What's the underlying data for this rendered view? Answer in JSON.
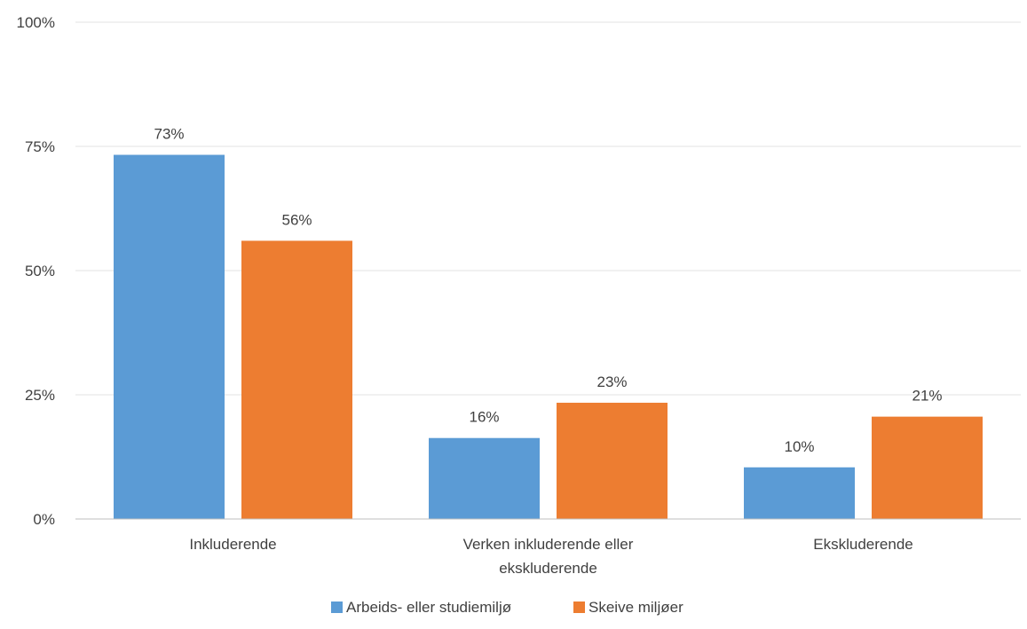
{
  "chart_data": {
    "type": "bar",
    "categories": [
      [
        "Inkluderende"
      ],
      [
        "Verken inkluderende eller",
        "ekskluderende"
      ],
      [
        "Ekskluderende"
      ]
    ],
    "series": [
      {
        "name": "Arbeids- eller studiemiljø",
        "color": "#5B9BD5",
        "values": [
          73.3,
          16.3,
          10.4
        ],
        "labels": [
          "73%",
          "16%",
          "10%"
        ]
      },
      {
        "name": "Skeive miljøer",
        "color": "#ED7D31",
        "values": [
          56.0,
          23.4,
          20.6
        ],
        "labels": [
          "56%",
          "23%",
          "21%"
        ]
      }
    ],
    "ylim": [
      0,
      100
    ],
    "yticks": [
      {
        "value": 0,
        "label": "0%"
      },
      {
        "value": 25,
        "label": "25%"
      },
      {
        "value": 50,
        "label": "50%"
      },
      {
        "value": 75,
        "label": "75%"
      },
      {
        "value": 100,
        "label": "100%"
      }
    ],
    "grid": true,
    "legend_position": "bottom"
  }
}
